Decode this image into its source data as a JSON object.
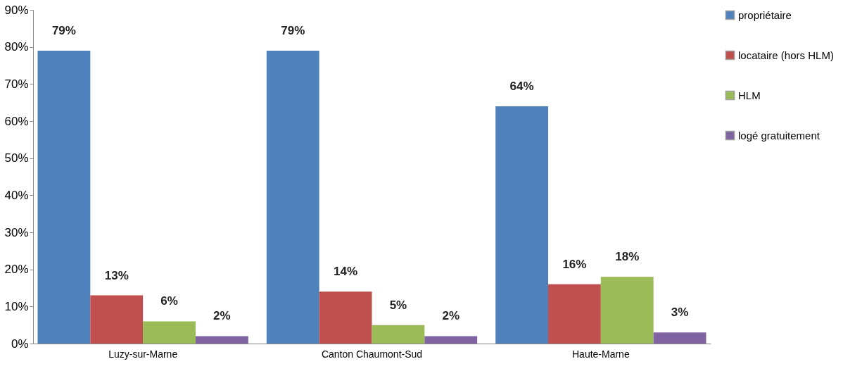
{
  "chart_data": {
    "type": "bar",
    "categories": [
      "Luzy-sur-Marne",
      "Canton Chaumont-Sud",
      "Haute-Marne"
    ],
    "series": [
      {
        "name": "propriétaire",
        "color": "#4f81bd",
        "values": [
          79,
          79,
          64
        ],
        "value_labels": [
          "79%",
          "79%",
          "64%"
        ]
      },
      {
        "name": "locataire (hors HLM)",
        "color": "#c0504d",
        "values": [
          13,
          14,
          16
        ],
        "value_labels": [
          "13%",
          "14%",
          "16%"
        ]
      },
      {
        "name": "HLM",
        "color": "#9bbb59",
        "values": [
          6,
          5,
          18
        ],
        "value_labels": [
          "6%",
          "5%",
          "18%"
        ]
      },
      {
        "name": "logé gratuitement",
        "color": "#8064a2",
        "values": [
          2,
          2,
          3
        ],
        "value_labels": [
          "2%",
          "2%",
          "3%"
        ]
      }
    ],
    "ylim": [
      0,
      90
    ],
    "yticks": [
      {
        "value": 0,
        "label": "0%"
      },
      {
        "value": 10,
        "label": "10%"
      },
      {
        "value": 20,
        "label": "20%"
      },
      {
        "value": 30,
        "label": "30%"
      },
      {
        "value": 40,
        "label": "40%"
      },
      {
        "value": 50,
        "label": "50%"
      },
      {
        "value": 60,
        "label": "60%"
      },
      {
        "value": 70,
        "label": "70%"
      },
      {
        "value": 80,
        "label": "80%"
      },
      {
        "value": 90,
        "label": "90%"
      }
    ],
    "grid": false,
    "legend": "right"
  }
}
